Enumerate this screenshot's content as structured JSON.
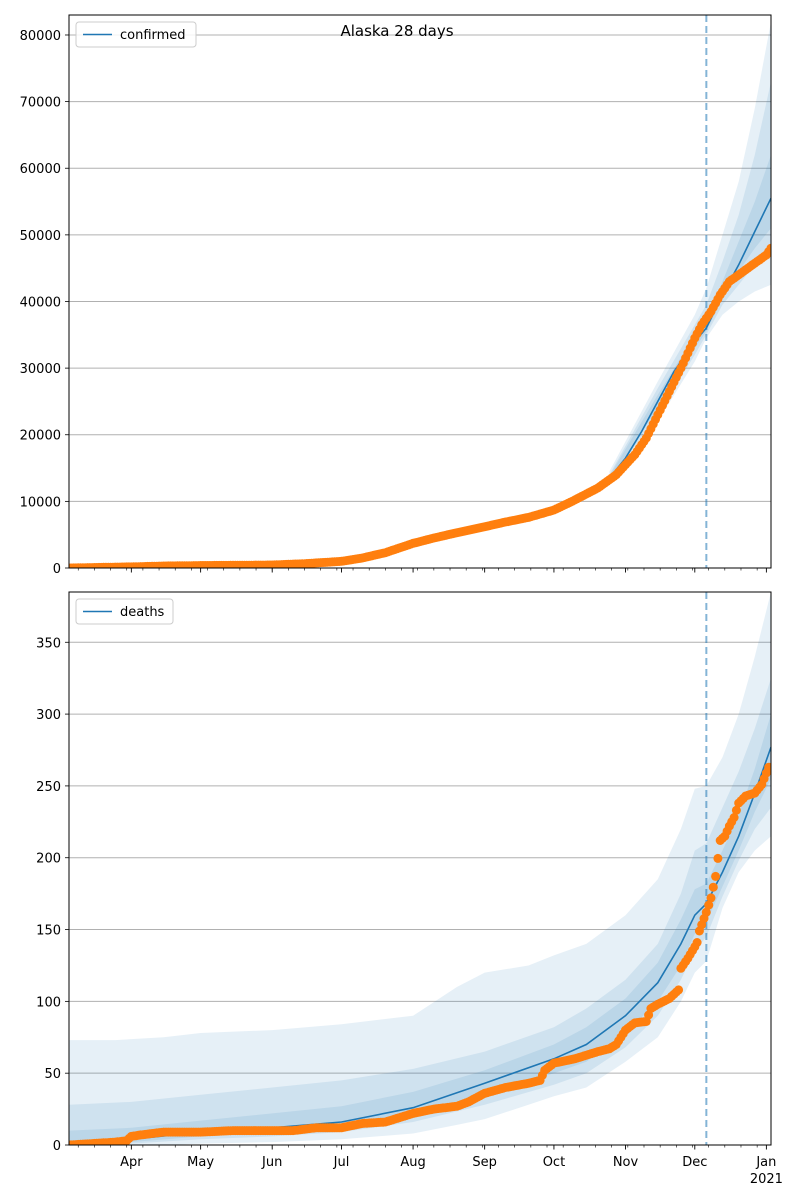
{
  "title": "Alaska 28 days",
  "x_tick_labels": [
    "Apr",
    "May",
    "Jun",
    "Jul",
    "Aug",
    "Sep",
    "Oct",
    "Nov",
    "Dec",
    "Jan"
  ],
  "x_tick_year": "2021",
  "forecast_start": "2020-12-06",
  "colors": {
    "model": "#1f77b4",
    "observed": "#ff7f0e",
    "band": "#1f77b4",
    "grid": "#b0b0b0",
    "vline": "#1f77b4"
  },
  "chart_data": [
    {
      "type": "line",
      "name": "confirmed",
      "legend": "top-left",
      "grid": true,
      "xlim": [
        "2020-03-05",
        "2021-01-03"
      ],
      "ylim": [
        0,
        83000
      ],
      "yticks": [
        0,
        10000,
        20000,
        30000,
        40000,
        50000,
        60000,
        70000,
        80000
      ],
      "model_dates": [
        "2020-03-05",
        "2020-04-01",
        "2020-05-01",
        "2020-06-01",
        "2020-07-01",
        "2020-07-15",
        "2020-08-01",
        "2020-08-15",
        "2020-09-01",
        "2020-09-15",
        "2020-10-01",
        "2020-10-15",
        "2020-10-25",
        "2020-11-01",
        "2020-11-08",
        "2020-11-15",
        "2020-11-22",
        "2020-12-01",
        "2020-12-06",
        "2020-12-13",
        "2020-12-20",
        "2020-12-27",
        "2021-01-03"
      ],
      "model_values": [
        0,
        150,
        350,
        500,
        900,
        2000,
        3500,
        5000,
        6200,
        7300,
        8800,
        11000,
        13500,
        16500,
        20500,
        25000,
        29500,
        34000,
        36000,
        41000,
        45500,
        50500,
        55500
      ],
      "bands": [
        {
          "dates": [
            "2020-10-25",
            "2020-11-15",
            "2020-12-01",
            "2020-12-06",
            "2020-12-13",
            "2020-12-20",
            "2020-12-27",
            "2021-01-03"
          ],
          "lower": [
            12500,
            22000,
            31000,
            34500,
            38000,
            40000,
            41500,
            42500
          ],
          "upper": [
            14500,
            28000,
            38000,
            42000,
            50000,
            58000,
            69000,
            82000
          ]
        },
        {
          "dates": [
            "2020-10-25",
            "2020-11-15",
            "2020-12-01",
            "2020-12-06",
            "2020-12-13",
            "2020-12-20",
            "2020-12-27",
            "2021-01-03"
          ],
          "lower": [
            13000,
            23000,
            32000,
            35000,
            39500,
            42500,
            45500,
            47000
          ],
          "upper": [
            14000,
            27000,
            36500,
            39500,
            46000,
            53000,
            62000,
            73000
          ]
        },
        {
          "dates": [
            "2020-10-25",
            "2020-11-15",
            "2020-12-01",
            "2020-12-06",
            "2020-12-13",
            "2020-12-20",
            "2020-12-27",
            "2021-01-03"
          ],
          "lower": [
            13200,
            24000,
            33000,
            35500,
            40500,
            44500,
            48000,
            51000
          ],
          "upper": [
            13800,
            26000,
            35000,
            37500,
            43000,
            49000,
            55000,
            62000
          ]
        }
      ],
      "observed_dates": [
        "2020-03-05",
        "2020-03-20",
        "2020-04-01",
        "2020-04-15",
        "2020-05-01",
        "2020-05-15",
        "2020-06-01",
        "2020-06-15",
        "2020-07-01",
        "2020-07-10",
        "2020-07-20",
        "2020-08-01",
        "2020-08-10",
        "2020-08-20",
        "2020-09-01",
        "2020-09-10",
        "2020-09-20",
        "2020-10-01",
        "2020-10-10",
        "2020-10-20",
        "2020-10-28",
        "2020-11-01",
        "2020-11-05",
        "2020-11-10",
        "2020-11-15",
        "2020-11-20",
        "2020-11-25",
        "2020-12-01",
        "2020-12-04",
        "2020-12-08",
        "2020-12-12",
        "2020-12-16",
        "2020-12-20",
        "2020-12-24",
        "2020-12-28",
        "2021-01-01",
        "2021-01-03"
      ],
      "observed_values": [
        0,
        100,
        170,
        300,
        370,
        400,
        450,
        650,
        1000,
        1500,
        2300,
        3700,
        4500,
        5300,
        6200,
        6900,
        7600,
        8700,
        10200,
        12000,
        14000,
        15500,
        17000,
        19500,
        23000,
        26500,
        30000,
        34500,
        36500,
        38500,
        41000,
        43000,
        44000,
        45000,
        46000,
        47000,
        48000
      ]
    },
    {
      "type": "line",
      "name": "deaths",
      "legend": "top-left",
      "grid": true,
      "xlim": [
        "2020-03-05",
        "2021-01-03"
      ],
      "ylim": [
        0,
        385
      ],
      "yticks": [
        0,
        50,
        100,
        150,
        200,
        250,
        300,
        350
      ],
      "model_dates": [
        "2020-03-05",
        "2020-04-01",
        "2020-05-01",
        "2020-06-01",
        "2020-07-01",
        "2020-08-01",
        "2020-09-01",
        "2020-10-01",
        "2020-10-15",
        "2020-11-01",
        "2020-11-15",
        "2020-11-25",
        "2020-12-01",
        "2020-12-06",
        "2020-12-13",
        "2020-12-20",
        "2020-12-27",
        "2021-01-03"
      ],
      "model_values": [
        2,
        4,
        9,
        12,
        16,
        26,
        43,
        60,
        70,
        90,
        113,
        140,
        160,
        168,
        190,
        215,
        245,
        277
      ],
      "bands": [
        {
          "dates": [
            "2020-03-05",
            "2020-03-25",
            "2020-04-15",
            "2020-05-01",
            "2020-06-01",
            "2020-07-01",
            "2020-08-01",
            "2020-08-20",
            "2020-09-01",
            "2020-09-20",
            "2020-10-01",
            "2020-10-15",
            "2020-11-01",
            "2020-11-15",
            "2020-11-25",
            "2020-12-01",
            "2020-12-06",
            "2020-12-13",
            "2020-12-20",
            "2020-12-27",
            "2021-01-03"
          ],
          "lower": [
            0,
            0,
            0,
            1,
            2,
            4,
            8,
            14,
            18,
            28,
            34,
            40,
            58,
            75,
            100,
            120,
            128,
            165,
            190,
            205,
            215
          ],
          "upper": [
            73,
            73,
            75,
            78,
            80,
            84,
            90,
            110,
            120,
            125,
            132,
            140,
            160,
            185,
            220,
            248,
            250,
            270,
            300,
            340,
            385
          ]
        },
        {
          "dates": [
            "2020-03-05",
            "2020-04-01",
            "2020-05-01",
            "2020-06-01",
            "2020-07-01",
            "2020-08-01",
            "2020-09-01",
            "2020-10-01",
            "2020-10-15",
            "2020-11-01",
            "2020-11-15",
            "2020-11-25",
            "2020-12-01",
            "2020-12-06",
            "2020-12-13",
            "2020-12-20",
            "2020-12-27",
            "2021-01-03"
          ],
          "lower": [
            0,
            1,
            4,
            6,
            9,
            16,
            28,
            42,
            50,
            68,
            90,
            115,
            135,
            145,
            173,
            198,
            220,
            235
          ],
          "upper": [
            28,
            30,
            35,
            40,
            45,
            53,
            65,
            82,
            95,
            115,
            140,
            175,
            205,
            210,
            235,
            260,
            290,
            325
          ]
        },
        {
          "dates": [
            "2020-03-05",
            "2020-04-01",
            "2020-05-01",
            "2020-06-01",
            "2020-07-01",
            "2020-08-01",
            "2020-09-01",
            "2020-10-01",
            "2020-10-15",
            "2020-11-01",
            "2020-11-15",
            "2020-11-25",
            "2020-12-01",
            "2020-12-06",
            "2020-12-13",
            "2020-12-20",
            "2020-12-27",
            "2021-01-03"
          ],
          "lower": [
            0,
            2,
            6,
            9,
            12,
            20,
            35,
            50,
            58,
            78,
            100,
            125,
            147,
            155,
            180,
            205,
            232,
            255
          ],
          "upper": [
            10,
            12,
            17,
            22,
            27,
            37,
            52,
            70,
            82,
            102,
            127,
            157,
            178,
            182,
            205,
            230,
            262,
            300
          ]
        }
      ],
      "observed_dates": [
        "2020-03-05",
        "2020-03-25",
        "2020-03-30",
        "2020-04-01",
        "2020-04-05",
        "2020-04-10",
        "2020-04-15",
        "2020-05-01",
        "2020-05-15",
        "2020-06-01",
        "2020-06-10",
        "2020-06-20",
        "2020-07-01",
        "2020-07-10",
        "2020-07-20",
        "2020-08-01",
        "2020-08-10",
        "2020-08-20",
        "2020-08-25",
        "2020-09-01",
        "2020-09-10",
        "2020-09-20",
        "2020-09-25",
        "2020-09-27",
        "2020-10-01",
        "2020-10-10",
        "2020-10-20",
        "2020-10-25",
        "2020-10-28",
        "2020-11-01",
        "2020-11-05",
        "2020-11-10",
        "2020-11-12",
        "2020-11-15",
        "2020-11-20",
        "2020-11-24",
        "2020-11-25",
        "2020-11-28",
        "2020-12-01",
        "2020-12-02",
        "2020-12-03",
        "2020-12-06",
        "2020-12-08",
        "2020-12-10",
        "2020-12-12",
        "2020-12-14",
        "2020-12-16",
        "2020-12-18",
        "2020-12-20",
        "2020-12-23",
        "2020-12-27",
        "2020-12-30",
        "2021-01-02"
      ],
      "observed_values": [
        0,
        2,
        3,
        6,
        7,
        8,
        9,
        9,
        10,
        10,
        10,
        12,
        12,
        15,
        16,
        22,
        25,
        27,
        30,
        36,
        40,
        43,
        45,
        52,
        57,
        60,
        65,
        67,
        70,
        80,
        85,
        86,
        95,
        98,
        102,
        108,
        123,
        130,
        138,
        141,
        149,
        162,
        172,
        187,
        212,
        215,
        222,
        228,
        238,
        243,
        245,
        251,
        263
      ]
    }
  ]
}
